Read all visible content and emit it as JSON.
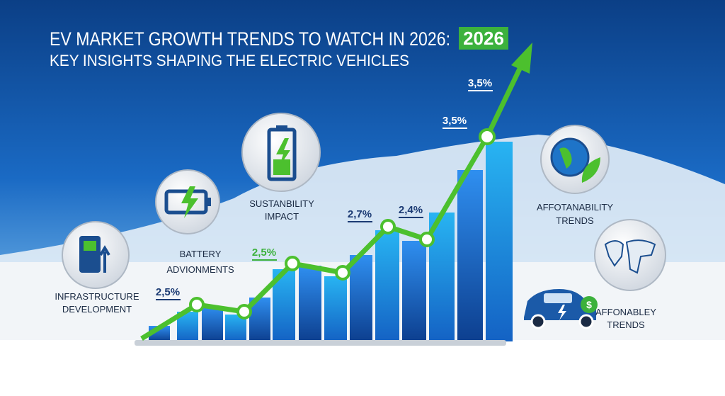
{
  "header": {
    "title": "EV MARKET GROWTH TRENDS TO WATCH IN 2026:",
    "badge": "2026",
    "subtitle": "KEY INSIGHTS SHAPING THE ELECTRIC VEHICLES"
  },
  "point_labels": [
    "2,5%",
    "2,5%",
    "2,7%",
    "2,4%",
    "3,5%",
    "3,5%"
  ],
  "insights": [
    {
      "lines": [
        "INFRASTRUCTURE",
        "DEVELOPMENT"
      ]
    },
    {
      "lines": [
        "BATTERY",
        "ADVIONMENTS"
      ]
    },
    {
      "lines": [
        "SUSTANBILITY",
        "IMPACT"
      ]
    },
    {
      "lines": [
        "AFFOTANABILITY",
        "TRENDS"
      ]
    },
    {
      "lines": [
        "AFFONABLEY",
        "TRENDS"
      ]
    }
  ]
}
